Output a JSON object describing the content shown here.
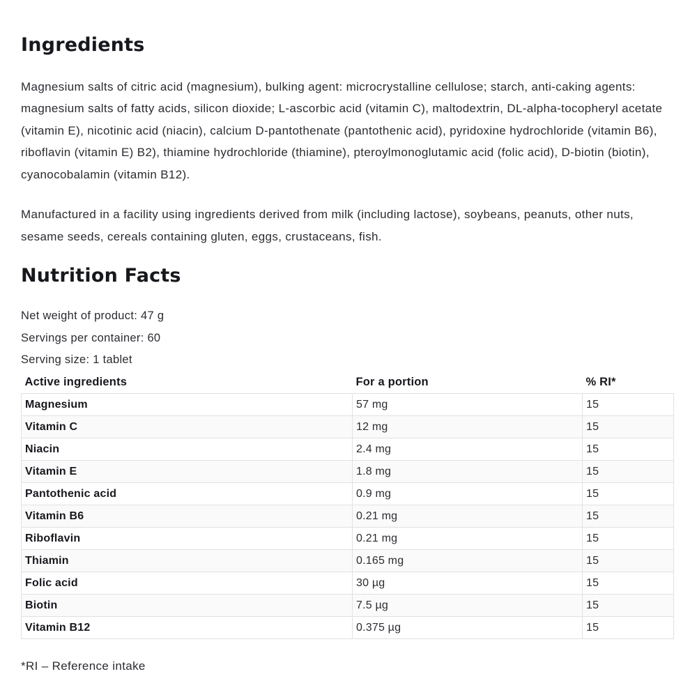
{
  "ingredients": {
    "title": "Ingredients",
    "paragraph1": "Magnesium salts of citric acid (magnesium), bulking agent: microcrystalline cellulose; starch, anti-caking agents: magnesium salts of fatty acids, silicon dioxide; L-ascorbic acid (vitamin C), maltodextrin, DL-alpha-tocopheryl acetate (vitamin E), nicotinic acid (niacin), calcium D-pantothenate (pantothenic acid), pyridoxine hydrochloride (vitamin B6), riboflavin (vitamin E) B2), thiamine hydrochloride (thiamine), pteroylmonoglutamic acid (folic acid), D-biotin (biotin), cyanocobalamin (vitamin B12).",
    "paragraph2": "Manufactured in a facility using ingredients derived from milk (including lactose), soybeans, peanuts, other nuts, sesame seeds, cereals containing gluten, eggs, crustaceans, fish."
  },
  "nutrition": {
    "title": "Nutrition Facts",
    "net_weight": "Net weight of product: 47 g",
    "servings_per_container": "Servings per container: 60",
    "serving_size": "Serving size: 1 tablet",
    "table": {
      "headers": [
        "Active ingredients",
        "For a portion",
        "% RI*"
      ],
      "rows": [
        {
          "name": "Magnesium",
          "portion": "57 mg",
          "ri": "15"
        },
        {
          "name": "Vitamin C",
          "portion": "12 mg",
          "ri": "15"
        },
        {
          "name": "Niacin",
          "portion": "2.4 mg",
          "ri": "15"
        },
        {
          "name": "Vitamin E",
          "portion": "1.8 mg",
          "ri": "15"
        },
        {
          "name": "Pantothenic acid",
          "portion": "0.9 mg",
          "ri": "15"
        },
        {
          "name": "Vitamin B6",
          "portion": "0.21 mg",
          "ri": "15"
        },
        {
          "name": "Riboflavin",
          "portion": "0.21 mg",
          "ri": "15"
        },
        {
          "name": "Thiamin",
          "portion": "0.165 mg",
          "ri": "15"
        },
        {
          "name": "Folic acid",
          "portion": "30 µg",
          "ri": "15"
        },
        {
          "name": "Biotin",
          "portion": "7.5 µg",
          "ri": "15"
        },
        {
          "name": "Vitamin B12",
          "portion": "0.375 µg",
          "ri": "15"
        }
      ]
    },
    "footnote": "*RI – Reference intake"
  },
  "colors": {
    "text": "#2b2c31",
    "heading_text": "#17181d",
    "table_border": "#e1e1e1",
    "row_alt_background": "#fafafa"
  }
}
